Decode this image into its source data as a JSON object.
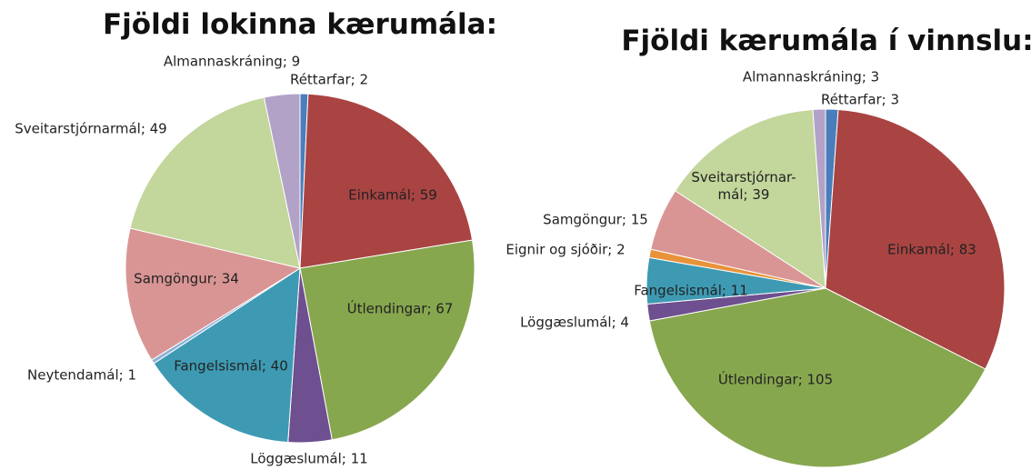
{
  "chart_data": [
    {
      "type": "pie",
      "title": "Fjöldi lokinna kærumála:",
      "values": [
        2,
        59,
        67,
        11,
        40,
        1,
        34,
        49,
        9
      ],
      "value_labels": [
        "Réttarfar; 2",
        "Einkamál; 59",
        "Útlendingar; 67",
        "Löggæslumál; 11",
        "Fangelsismál; 40",
        "Neytendamál; 1",
        "Samgöngur; 34",
        "Sveitarstjórnarmál; 49",
        "Almannaskráning; 9"
      ],
      "colors": [
        "#4a7ebb",
        "#a94442",
        "#87a74e",
        "#6e4f8f",
        "#3e9ab3",
        "#8db3d9",
        "#d99594",
        "#c3d69b",
        "#b3a2c7"
      ]
    },
    {
      "type": "pie",
      "title": "Fjöldi kærumála í vinnslu:",
      "values": [
        3,
        83,
        105,
        4,
        11,
        2,
        15,
        39,
        3
      ],
      "value_labels": [
        "Réttarfar; 3",
        "Einkamál; 83",
        "Útlendingar; 105",
        "Löggæslumál; 4",
        "Fangelsismál; 11",
        "Eignir og sjóðir; 2",
        "Samgöngur; 15",
        "Sveitarstjórnar-\nmál; 39",
        "Almannaskráning; 3"
      ],
      "colors": [
        "#4a7ebb",
        "#a94442",
        "#87a74e",
        "#6e4f8f",
        "#3e9ab3",
        "#e8923a",
        "#d99594",
        "#c3d69b",
        "#b3a2c7"
      ]
    }
  ]
}
